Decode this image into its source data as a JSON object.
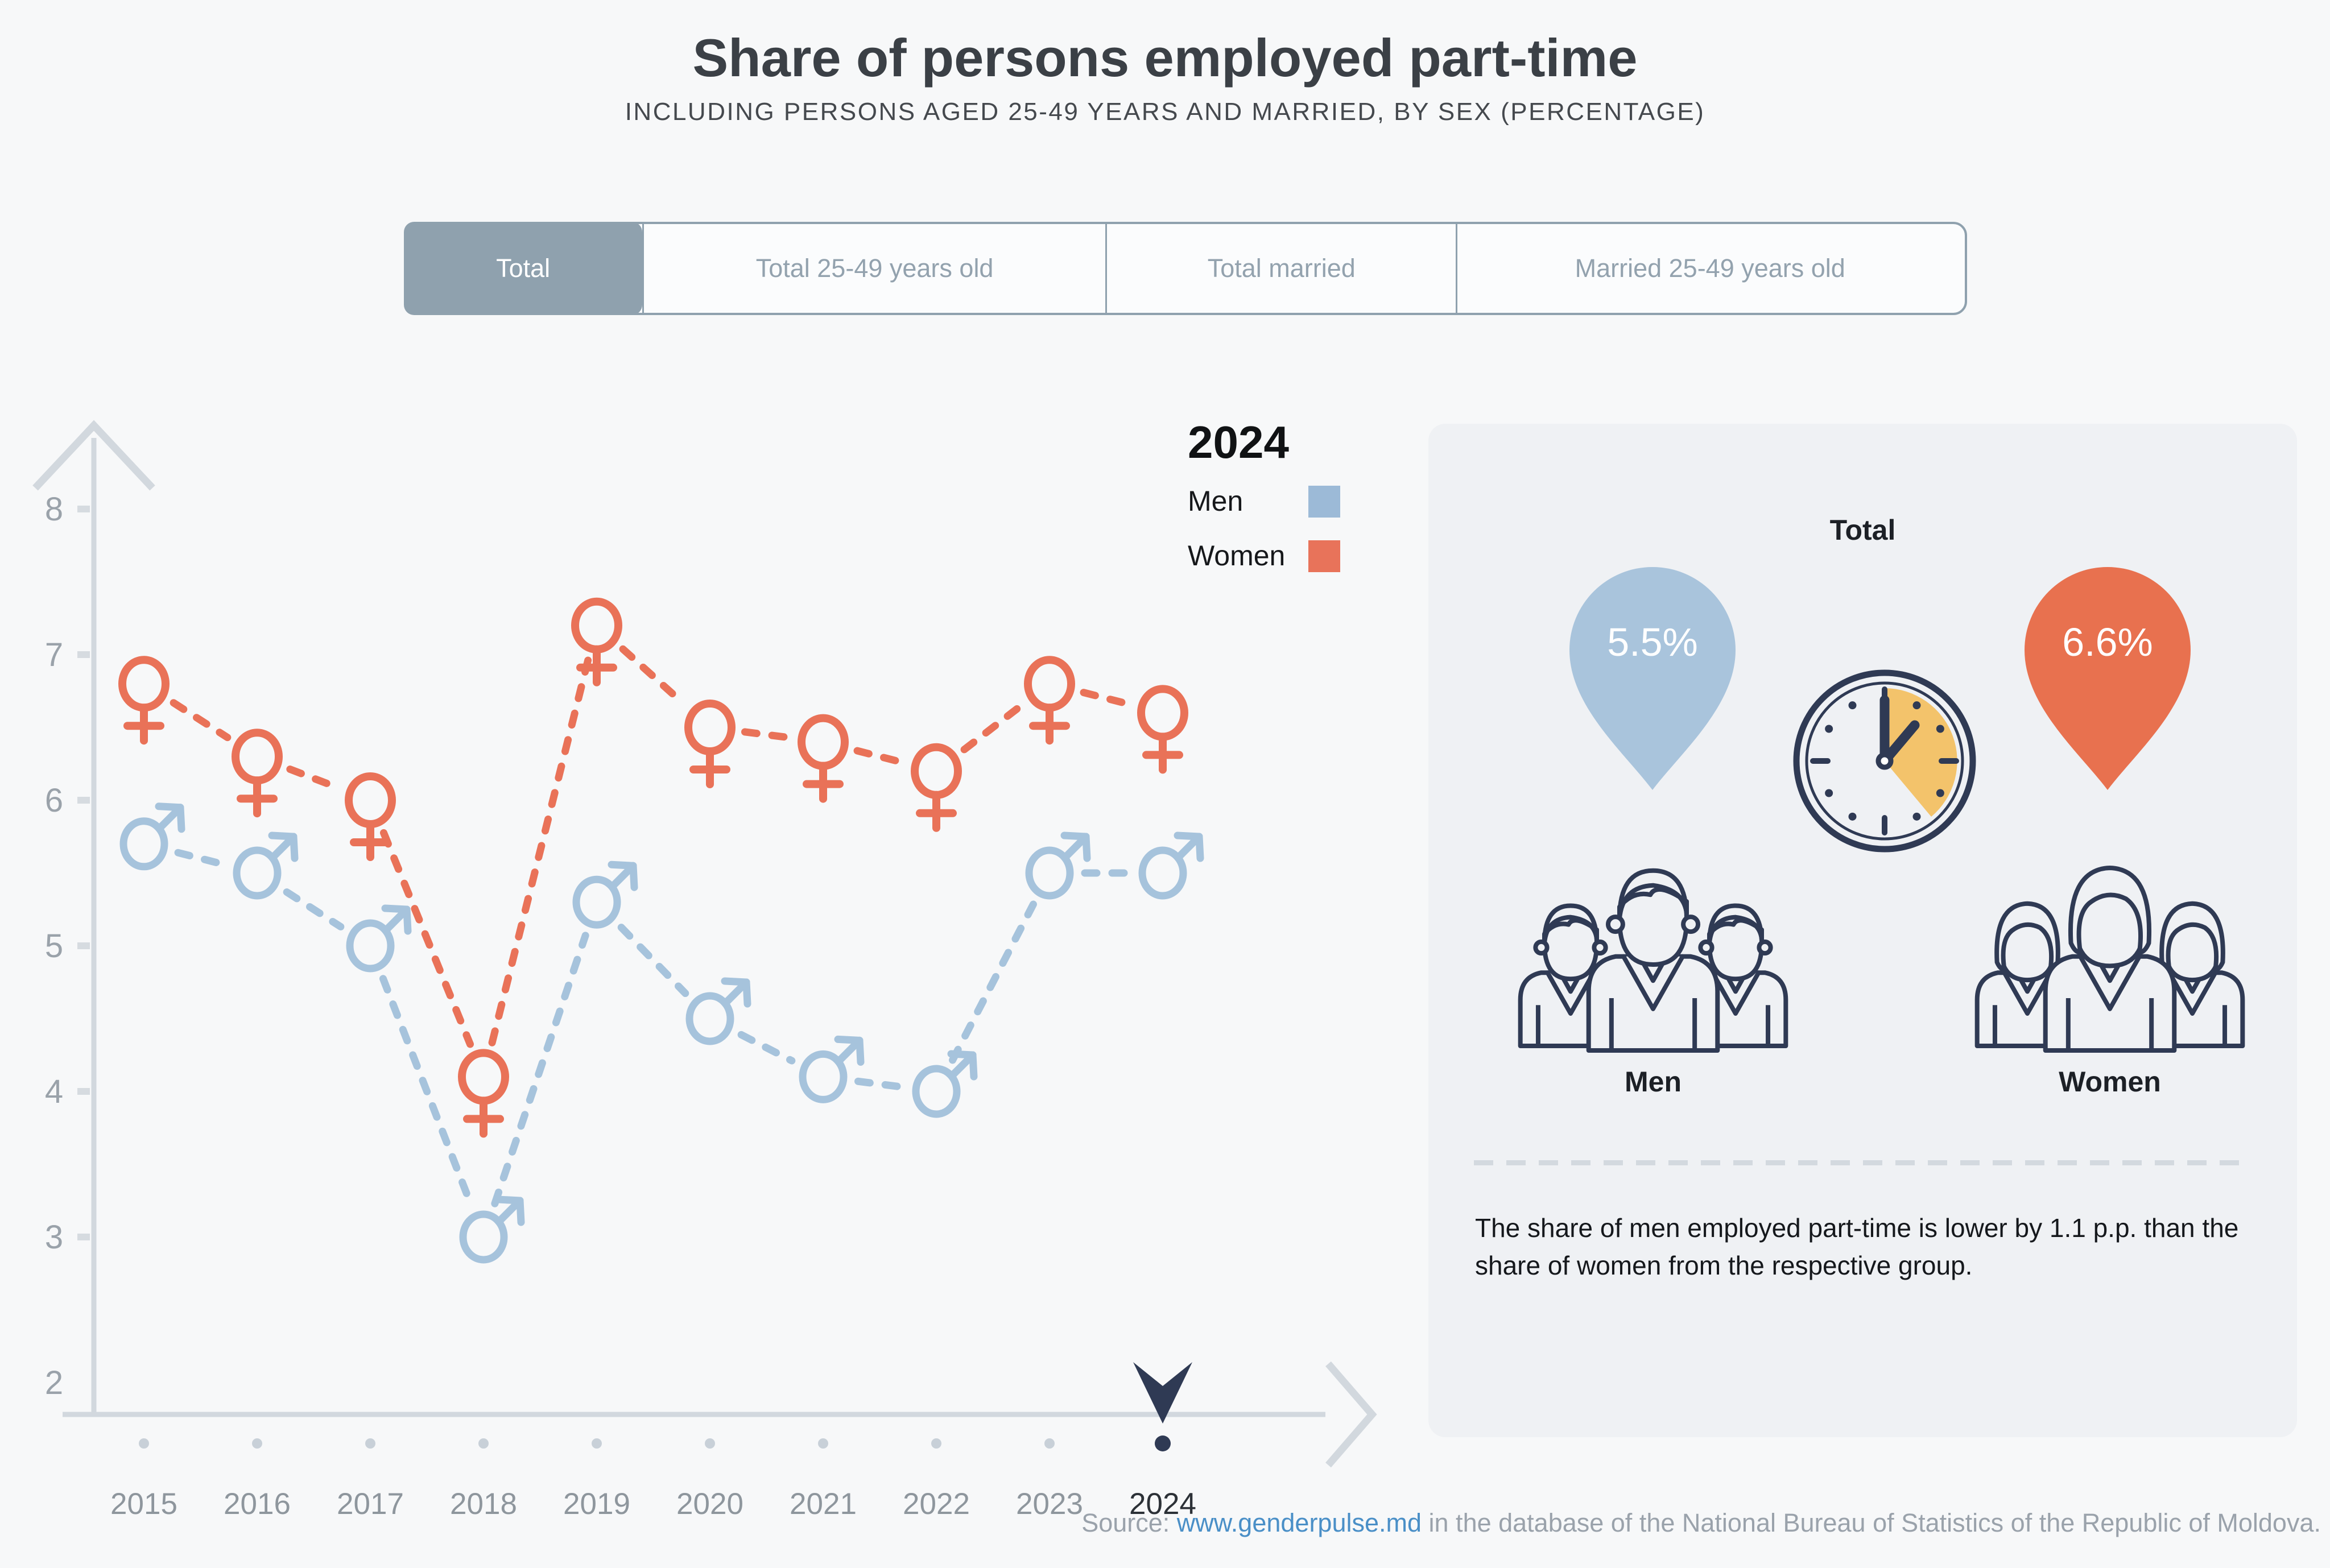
{
  "title": "Share of persons employed part-time",
  "subtitle": "INCLUDING PERSONS AGED 25-49 YEARS AND MARRIED, BY SEX (PERCENTAGE)",
  "tabs": [
    {
      "label": "Total",
      "active": true
    },
    {
      "label": "Total 25-49 years old",
      "active": false
    },
    {
      "label": "Total married",
      "active": false
    },
    {
      "label": "Married 25-49 years old",
      "active": false
    }
  ],
  "legend": {
    "year": "2024",
    "men_label": "Men",
    "women_label": "Women"
  },
  "chart_data": {
    "type": "line",
    "x": [
      "2015",
      "2016",
      "2017",
      "2018",
      "2019",
      "2020",
      "2021",
      "2022",
      "2023",
      "2024"
    ],
    "series": [
      {
        "name": "Men",
        "color": "#a6c3dc",
        "marker": "male-symbol",
        "values": [
          5.7,
          5.5,
          5.0,
          3.0,
          5.3,
          4.5,
          4.1,
          4.0,
          5.5,
          5.5
        ]
      },
      {
        "name": "Women",
        "color": "#e97258",
        "marker": "female-symbol",
        "values": [
          6.8,
          6.3,
          6.0,
          4.1,
          7.2,
          6.5,
          6.4,
          6.2,
          6.8,
          6.6
        ]
      }
    ],
    "title": "Share of persons employed part-time",
    "xlabel": "",
    "ylabel": "",
    "ylim": [
      2,
      8
    ],
    "yticks": [
      2,
      3,
      4,
      5,
      6,
      7,
      8
    ],
    "grid": false,
    "line_style": "dashed",
    "legend_position": "top-right",
    "selected_year": "2024"
  },
  "panel": {
    "heading": "Total",
    "men_value": "5.5%",
    "women_value": "6.6%",
    "men_label": "Men",
    "women_label": "Women",
    "note": "The share of men employed part-time is lower by 1.1 p.p. than the share of women from the respective group."
  },
  "source": {
    "prefix": "Source: ",
    "link": "www.genderpulse.md",
    "suffix": " in the database of the National Bureau of Statistics of the Republic of Moldova."
  },
  "colors": {
    "background": "#f7f8f9",
    "panel_background": "#eff1f4",
    "men": "#a6c3dc",
    "men_swatch": "#9cbad7",
    "women": "#e97258",
    "women_swatch": "#e8735a",
    "axis": "#d2d8de",
    "axis_label": "#9aa2aa",
    "year_label": "#8e969d",
    "selected_year_label": "#2c3137",
    "navy": "#2f3a54",
    "clock_wedge": "#f3c36b",
    "tab_accent": "#8fa1ae",
    "link": "#4a8fc7",
    "pin_blue": "#a9c4dc",
    "pin_orange": "#e8714f"
  }
}
